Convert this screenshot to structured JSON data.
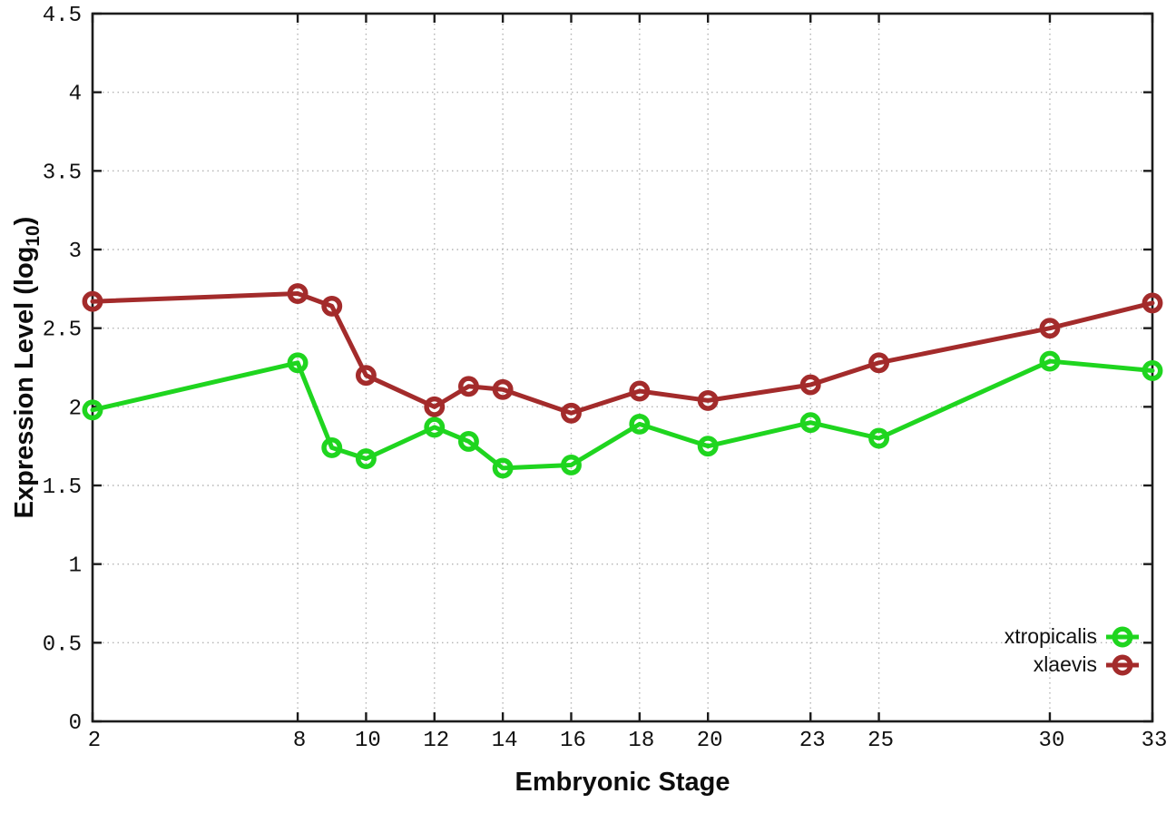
{
  "chart_data": {
    "type": "line",
    "title": "",
    "xlabel": "Embryonic Stage",
    "ylabel": "Expression Level (log₁₀)",
    "ylabel_parts": {
      "prefix": "Expression Level (log",
      "sub": "10",
      "suffix": ")"
    },
    "x": [
      2,
      8,
      9,
      10,
      12,
      13,
      14,
      16,
      18,
      20,
      23,
      25,
      30,
      33
    ],
    "xlim": [
      2,
      33
    ],
    "ylim": [
      0,
      4.5
    ],
    "xticks": [
      2,
      8,
      10,
      12,
      14,
      16,
      18,
      20,
      23,
      25,
      30,
      33
    ],
    "yticks": [
      0,
      0.5,
      1,
      1.5,
      2,
      2.5,
      3,
      3.5,
      4,
      4.5
    ],
    "ytick_labels": [
      "0",
      "0.5",
      "1",
      "1.5",
      "2",
      "2.5",
      "3",
      "3.5",
      "4",
      "4.5"
    ],
    "grid": true,
    "legend_position": "inside-bottom-right",
    "series": [
      {
        "name": "xtropicalis",
        "color": "#1fd51f",
        "marker": "open-circle",
        "values": [
          1.98,
          2.28,
          1.74,
          1.67,
          1.87,
          1.78,
          1.61,
          1.63,
          1.89,
          1.75,
          1.9,
          1.8,
          2.29,
          2.23
        ]
      },
      {
        "name": "xlaevis",
        "color": "#a32b2b",
        "marker": "open-circle",
        "values": [
          2.67,
          2.72,
          2.64,
          2.2,
          2.0,
          2.13,
          2.11,
          1.96,
          2.1,
          2.04,
          2.14,
          2.28,
          2.5,
          2.66
        ]
      }
    ],
    "style_colors": {
      "axis_border": "#1c1c1c",
      "grid": "#b4b4b4",
      "tick_label": "#111111"
    }
  }
}
